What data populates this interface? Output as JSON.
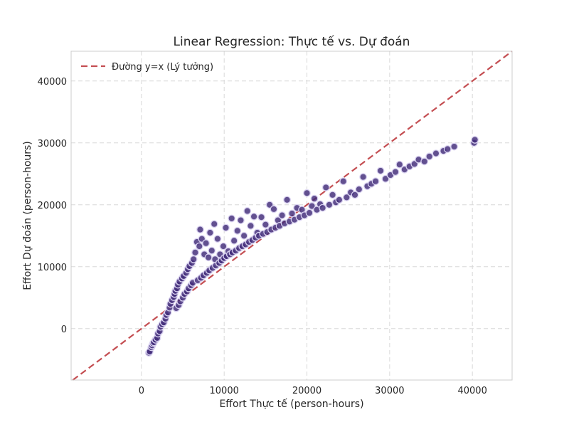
{
  "chart_data": {
    "type": "scatter",
    "title": "Linear Regression: Thực tế vs. Dự đoán",
    "xlabel": "Effort Thực tế (person-hours)",
    "ylabel": "Effort Dự đoán (person-hours)",
    "xlim": [
      -8500,
      44800
    ],
    "ylim": [
      -8300,
      44800
    ],
    "xticks": [
      0,
      10000,
      20000,
      30000,
      40000
    ],
    "yticks": [
      0,
      10000,
      20000,
      30000,
      40000
    ],
    "grid": true,
    "legend": {
      "position": "top-left",
      "entries": [
        "Đường y=x (Lý tưởng)"
      ]
    },
    "reference_line": {
      "name": "Đường y=x (Lý tưởng)",
      "color": "#c44e52",
      "style": "dashed"
    },
    "series": [
      {
        "color": "#3f2a78",
        "points": [
          [
            900,
            -3900
          ],
          [
            1000,
            -3700
          ],
          [
            1200,
            -3000
          ],
          [
            1300,
            -2700
          ],
          [
            1400,
            -2400
          ],
          [
            1500,
            -2200
          ],
          [
            1700,
            -1800
          ],
          [
            1900,
            -1500
          ],
          [
            2000,
            -800
          ],
          [
            2200,
            -400
          ],
          [
            2300,
            300
          ],
          [
            2500,
            700
          ],
          [
            2700,
            1000
          ],
          [
            2900,
            1600
          ],
          [
            3000,
            2200
          ],
          [
            3200,
            2600
          ],
          [
            3400,
            3400
          ],
          [
            3500,
            4000
          ],
          [
            3700,
            4600
          ],
          [
            3900,
            5100
          ],
          [
            4000,
            5600
          ],
          [
            4100,
            6100
          ],
          [
            4200,
            3300
          ],
          [
            4300,
            6500
          ],
          [
            4400,
            7100
          ],
          [
            4500,
            3800
          ],
          [
            4600,
            7600
          ],
          [
            4700,
            4400
          ],
          [
            4900,
            8100
          ],
          [
            5000,
            5000
          ],
          [
            5100,
            8500
          ],
          [
            5200,
            5600
          ],
          [
            5400,
            9000
          ],
          [
            5500,
            6000
          ],
          [
            5600,
            9600
          ],
          [
            5700,
            6500
          ],
          [
            5800,
            10100
          ],
          [
            6000,
            7000
          ],
          [
            6100,
            10600
          ],
          [
            6200,
            7400
          ],
          [
            6300,
            11200
          ],
          [
            6500,
            12300
          ],
          [
            6700,
            14000
          ],
          [
            6800,
            7800
          ],
          [
            7000,
            13300
          ],
          [
            7100,
            16000
          ],
          [
            7200,
            8200
          ],
          [
            7300,
            14500
          ],
          [
            7500,
            8600
          ],
          [
            7600,
            12000
          ],
          [
            7800,
            13800
          ],
          [
            7900,
            9000
          ],
          [
            8100,
            11500
          ],
          [
            8200,
            9400
          ],
          [
            8300,
            15500
          ],
          [
            8500,
            12600
          ],
          [
            8600,
            9800
          ],
          [
            8800,
            16900
          ],
          [
            8900,
            11200
          ],
          [
            9000,
            10200
          ],
          [
            9200,
            14500
          ],
          [
            9400,
            10600
          ],
          [
            9500,
            12000
          ],
          [
            9700,
            11000
          ],
          [
            9900,
            13300
          ],
          [
            10000,
            11400
          ],
          [
            10200,
            16300
          ],
          [
            10300,
            11700
          ],
          [
            10500,
            12500
          ],
          [
            10700,
            12000
          ],
          [
            10900,
            17800
          ],
          [
            11000,
            12300
          ],
          [
            11200,
            14200
          ],
          [
            11400,
            12600
          ],
          [
            11600,
            15800
          ],
          [
            11800,
            13000
          ],
          [
            12000,
            17500
          ],
          [
            12200,
            13300
          ],
          [
            12400,
            15000
          ],
          [
            12600,
            13600
          ],
          [
            12800,
            19000
          ],
          [
            13000,
            14000
          ],
          [
            13200,
            16600
          ],
          [
            13400,
            14300
          ],
          [
            13600,
            18100
          ],
          [
            13800,
            14700
          ],
          [
            14000,
            15500
          ],
          [
            14200,
            15000
          ],
          [
            14500,
            18000
          ],
          [
            14700,
            15300
          ],
          [
            15000,
            16800
          ],
          [
            15200,
            15600
          ],
          [
            15500,
            20000
          ],
          [
            15700,
            16000
          ],
          [
            16000,
            19300
          ],
          [
            16200,
            16300
          ],
          [
            16500,
            17500
          ],
          [
            16700,
            16600
          ],
          [
            17000,
            18300
          ],
          [
            17300,
            17000
          ],
          [
            17600,
            20800
          ],
          [
            17900,
            17300
          ],
          [
            18200,
            18600
          ],
          [
            18500,
            17600
          ],
          [
            18800,
            19500
          ],
          [
            19100,
            18000
          ],
          [
            19400,
            19200
          ],
          [
            19700,
            18300
          ],
          [
            20000,
            21900
          ],
          [
            20300,
            18700
          ],
          [
            20600,
            19800
          ],
          [
            20900,
            21000
          ],
          [
            21200,
            19200
          ],
          [
            21600,
            20100
          ],
          [
            21900,
            19500
          ],
          [
            22300,
            22800
          ],
          [
            22700,
            20000
          ],
          [
            23100,
            21600
          ],
          [
            23500,
            20400
          ],
          [
            23900,
            20800
          ],
          [
            24400,
            23800
          ],
          [
            24800,
            21200
          ],
          [
            25300,
            22000
          ],
          [
            25800,
            21600
          ],
          [
            26300,
            22500
          ],
          [
            26800,
            24500
          ],
          [
            27300,
            23000
          ],
          [
            27800,
            23400
          ],
          [
            28300,
            23800
          ],
          [
            28900,
            25500
          ],
          [
            29500,
            24200
          ],
          [
            30100,
            24800
          ],
          [
            30700,
            25300
          ],
          [
            31200,
            26500
          ],
          [
            31800,
            25700
          ],
          [
            32400,
            26200
          ],
          [
            33000,
            26600
          ],
          [
            33500,
            27300
          ],
          [
            34200,
            27000
          ],
          [
            34800,
            27800
          ],
          [
            35600,
            28300
          ],
          [
            36500,
            28700
          ],
          [
            37000,
            29000
          ],
          [
            37800,
            29400
          ],
          [
            40200,
            30000
          ],
          [
            40300,
            30500
          ]
        ]
      }
    ]
  }
}
